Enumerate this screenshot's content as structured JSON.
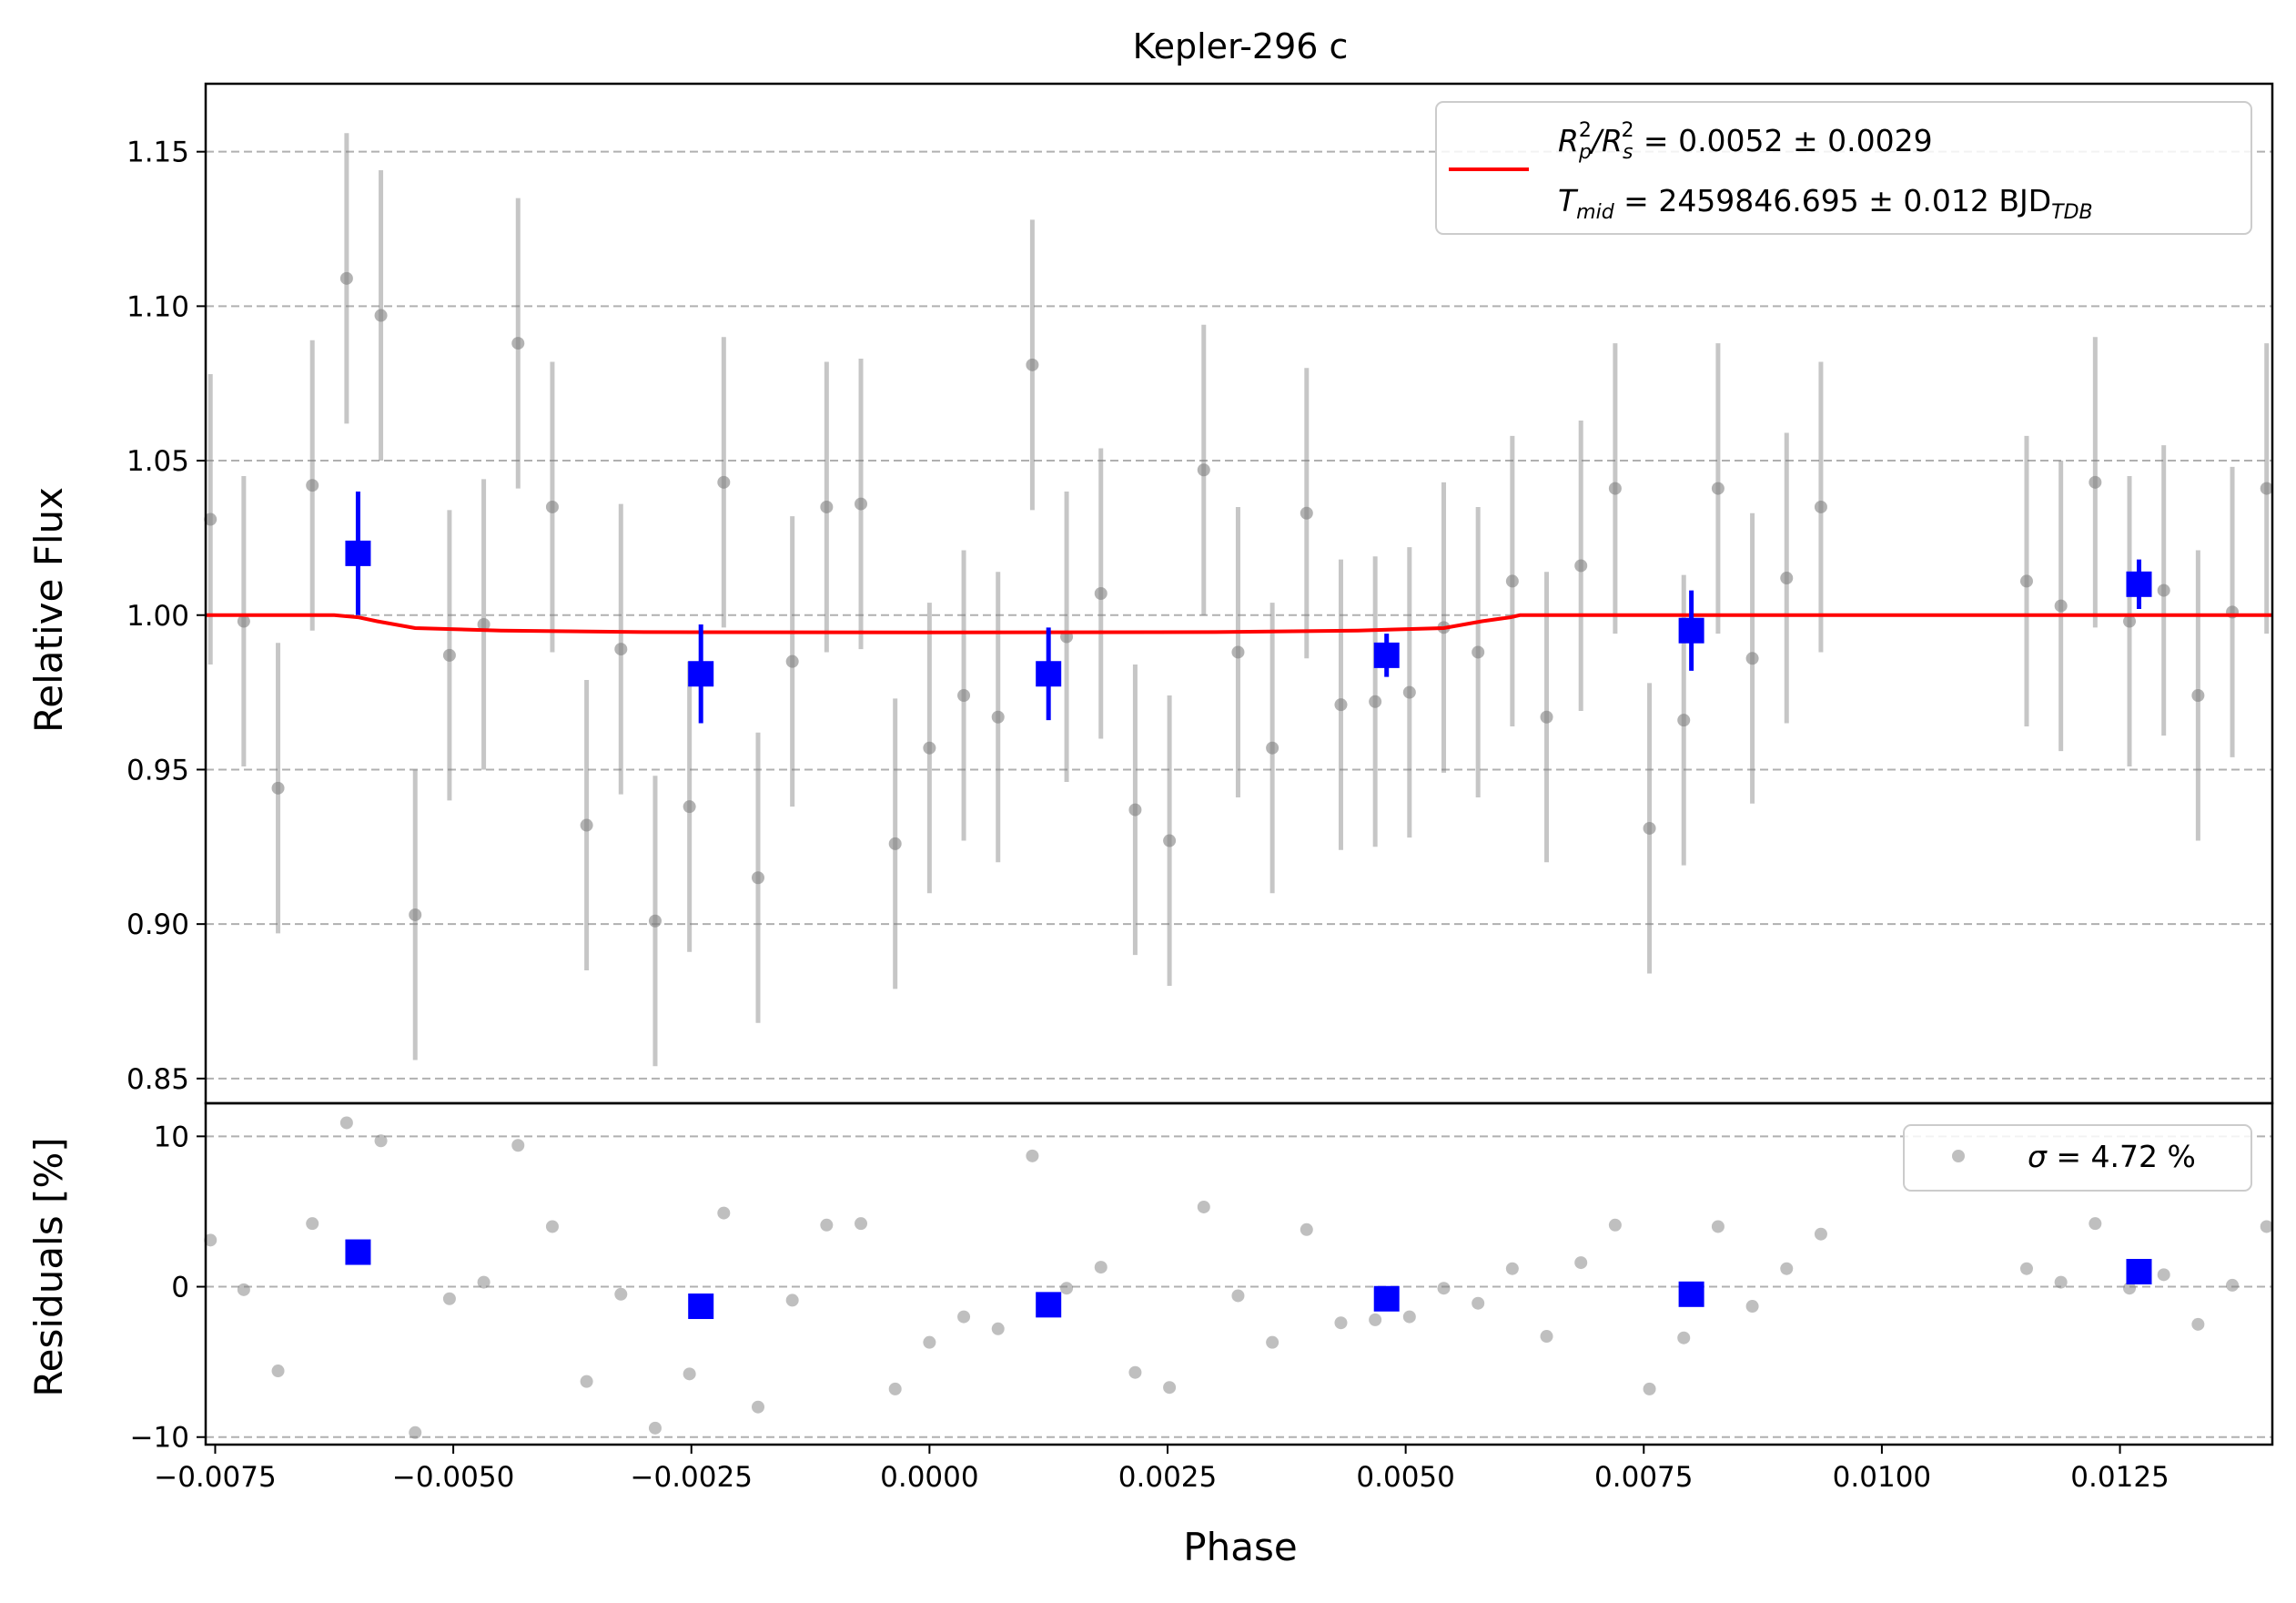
{
  "chart_data": {
    "type": "scatter",
    "title": "Kepler-296 c",
    "xlabel": "Phase",
    "top_panel": {
      "ylabel": "Relative Flux",
      "xlim": [
        -0.0076,
        0.0141
      ],
      "ylim": [
        0.842,
        1.172
      ],
      "yticks": [
        0.85,
        0.9,
        0.95,
        1.0,
        1.05,
        1.1,
        1.15
      ],
      "ytick_labels": [
        "0.85",
        "0.90",
        "0.95",
        "1.00",
        "1.05",
        "1.10",
        "1.15"
      ],
      "grid": "horizontal dashed",
      "legend": {
        "position": "top-right",
        "line1": {
          "pre": "R",
          "sub1": "p",
          "sup1": "2",
          "mid": "/R",
          "sub2": "s",
          "sup2": "2",
          "post": " = 0.0052 ± 0.0029"
        },
        "line2": {
          "pre": "T",
          "sub1": "mid",
          "post": " = 2459846.695 ± 0.012 BJD",
          "sub2": "TDB"
        }
      },
      "model_color": "#ff0000",
      "raw_color": "#808080",
      "binned_color": "#0000ff",
      "model": {
        "x": [
          -0.0076,
          -0.00625,
          -0.006,
          -0.0058,
          -0.0054,
          -0.0045,
          -0.003,
          0.0,
          0.003,
          0.0045,
          0.0054,
          0.0058,
          0.0061,
          0.0062,
          0.0141
        ],
        "y": [
          1.0,
          1.0,
          0.9993,
          0.998,
          0.9958,
          0.995,
          0.9945,
          0.9944,
          0.9945,
          0.995,
          0.9958,
          0.998,
          0.9993,
          1.0,
          1.0
        ]
      },
      "raw": {
        "x": [
          -0.00755,
          -0.0072,
          -0.00684,
          -0.00648,
          -0.00612,
          -0.00576,
          -0.0054,
          -0.00504,
          -0.00468,
          -0.00432,
          -0.00396,
          -0.0036,
          -0.00324,
          -0.00288,
          -0.00252,
          -0.00216,
          -0.0018,
          -0.00144,
          -0.00108,
          -0.00072,
          -0.00036,
          0.0,
          0.00036,
          0.00072,
          0.00108,
          0.00144,
          0.0018,
          0.00216,
          0.00252,
          0.00288,
          0.00324,
          0.0036,
          0.00396,
          0.00432,
          0.00468,
          0.00504,
          0.0054,
          0.00576,
          0.00612,
          0.00648,
          0.00684,
          0.0072,
          0.00756,
          0.00792,
          0.00828,
          0.00864,
          0.009,
          0.00936,
          0.01152,
          0.01188,
          0.01224,
          0.0126,
          0.01296,
          0.01332,
          0.01368,
          0.01404
        ],
        "y": [
          1.031,
          0.998,
          0.944,
          1.042,
          1.109,
          1.097,
          0.903,
          0.987,
          0.997,
          1.088,
          1.035,
          0.932,
          0.989,
          0.901,
          0.938,
          1.043,
          0.915,
          0.985,
          1.035,
          1.036,
          0.926,
          0.957,
          0.974,
          0.967,
          1.081,
          0.993,
          1.007,
          0.937,
          0.927,
          1.047,
          0.988,
          0.957,
          1.033,
          0.971,
          0.972,
          0.975,
          0.996,
          0.988,
          1.011,
          0.967,
          1.016,
          1.041,
          0.931,
          0.966,
          1.041,
          0.986,
          1.012,
          1.035,
          1.011,
          1.003,
          1.043,
          0.998,
          1.008,
          0.974,
          1.001,
          1.041
        ],
        "err": 0.047
      },
      "binned": {
        "x": [
          -0.006,
          -0.0024,
          0.00125,
          0.0048,
          0.008,
          0.0127
        ],
        "y": [
          1.02,
          0.981,
          0.981,
          0.987,
          0.995,
          1.01
        ],
        "err": [
          0.02,
          0.016,
          0.015,
          0.007,
          0.013,
          0.008
        ]
      }
    },
    "bottom_panel": {
      "ylabel": "Residuals [%]",
      "ylim": [
        -10.5,
        12.2
      ],
      "yticks": [
        -10,
        0,
        10
      ],
      "ytick_labels": [
        "−10",
        "0",
        "10"
      ],
      "legend": {
        "position": "top-right",
        "sigma_symbol": "σ",
        "text": " = 4.72 %"
      },
      "raw_y": [
        3.1,
        -0.2,
        -5.6,
        4.2,
        10.9,
        9.7,
        -9.7,
        -0.8,
        0.3,
        9.4,
        4.0,
        -6.3,
        -0.5,
        -9.4,
        -5.8,
        4.9,
        -8.0,
        -0.9,
        4.1,
        4.2,
        -6.8,
        -3.7,
        -2.0,
        -2.8,
        8.7,
        -0.1,
        1.3,
        -5.7,
        -6.7,
        5.3,
        -0.6,
        -3.7,
        3.8,
        -2.4,
        -2.2,
        -2.0,
        -0.1,
        -1.1,
        1.2,
        -3.3,
        1.6,
        4.1,
        -6.8,
        -3.4,
        4.0,
        -1.3,
        1.2,
        3.5,
        1.2,
        0.3,
        4.2,
        -0.1,
        0.8,
        -2.5,
        0.1,
        4.0
      ],
      "binned_y": [
        2.3,
        -1.3,
        -1.2,
        -0.8,
        -0.5,
        1.0
      ]
    },
    "xticks": [
      -0.0075,
      -0.005,
      -0.0025,
      0.0,
      0.0025,
      0.005,
      0.0075,
      0.01,
      0.0125
    ],
    "xtick_labels": [
      "−0.0075",
      "−0.0050",
      "−0.0025",
      "0.0000",
      "0.0025",
      "0.0050",
      "0.0075",
      "0.0100",
      "0.0125"
    ]
  }
}
